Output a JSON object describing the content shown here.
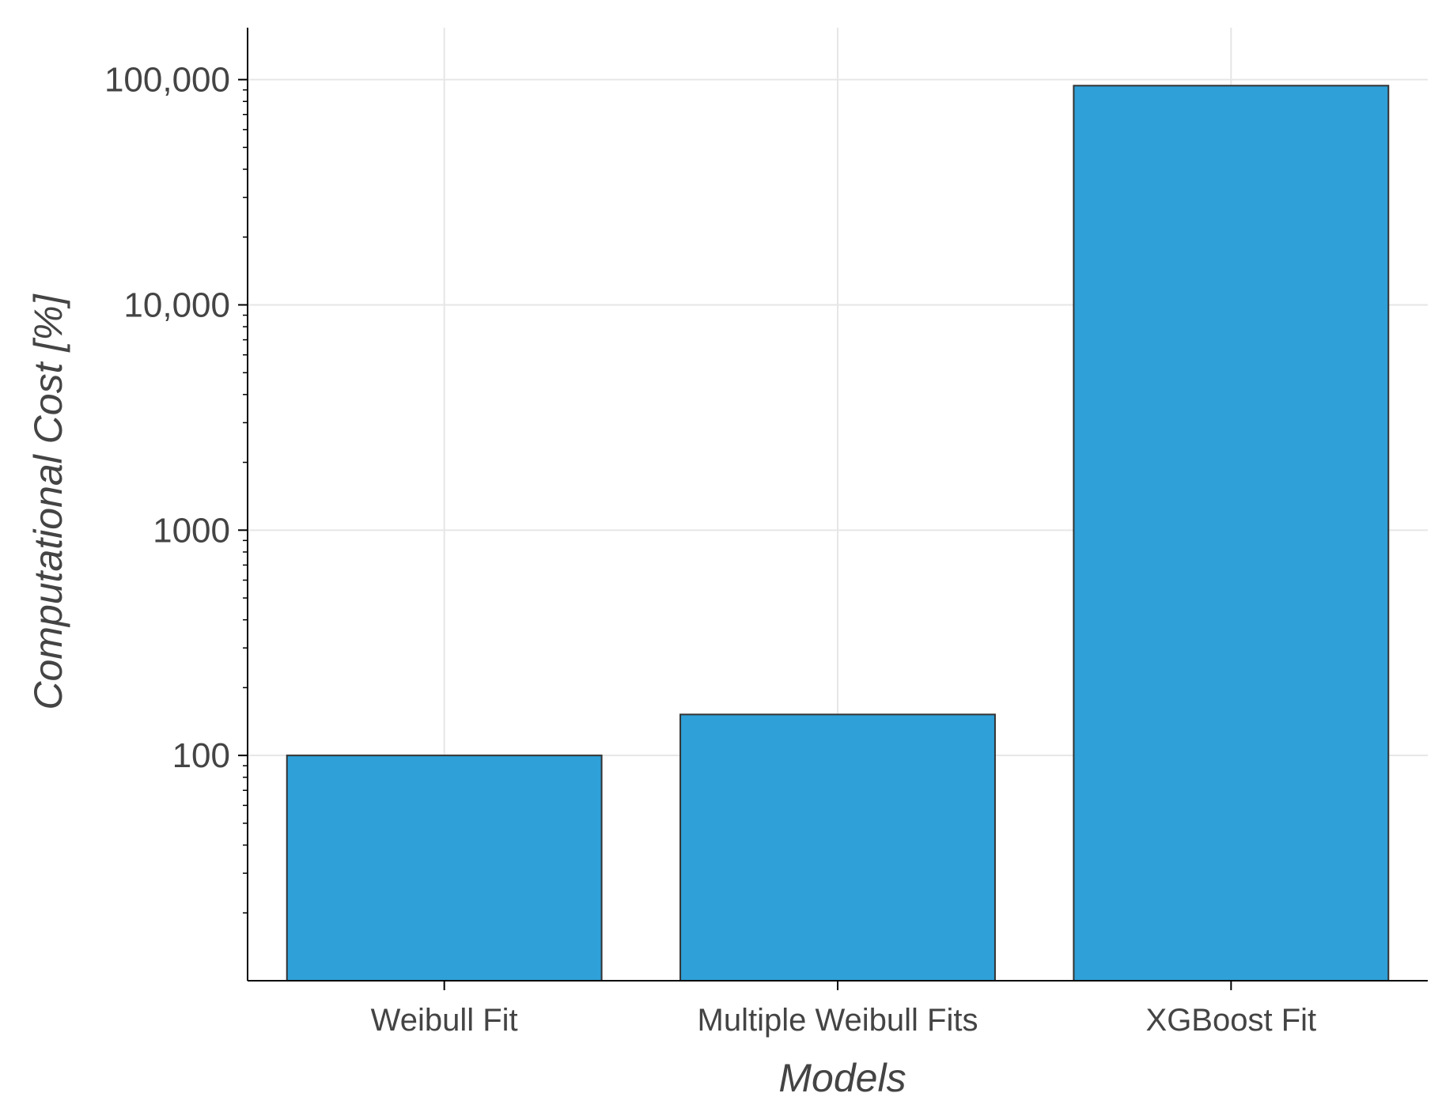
{
  "chart_data": {
    "type": "bar",
    "categories": [
      "Weibull Fit",
      "Multiple Weibull Fits",
      "XGBoost Fit"
    ],
    "values": [
      100,
      152,
      94000
    ],
    "xlabel": "Models",
    "ylabel": "Computational Cost [%]",
    "yscale": "log",
    "ylim": [
      10,
      170000
    ],
    "yticks": [
      {
        "value": 100,
        "label": "100"
      },
      {
        "value": 1000,
        "label": "1000"
      },
      {
        "value": 10000,
        "label": "10,000"
      },
      {
        "value": 100000,
        "label": "100,000"
      }
    ],
    "grid": true,
    "legend": "none",
    "colors": {
      "bar_fill": "#2fa0d8",
      "bar_edge": "#333333",
      "grid": "#e6e6e6",
      "axis": "#000000"
    }
  }
}
